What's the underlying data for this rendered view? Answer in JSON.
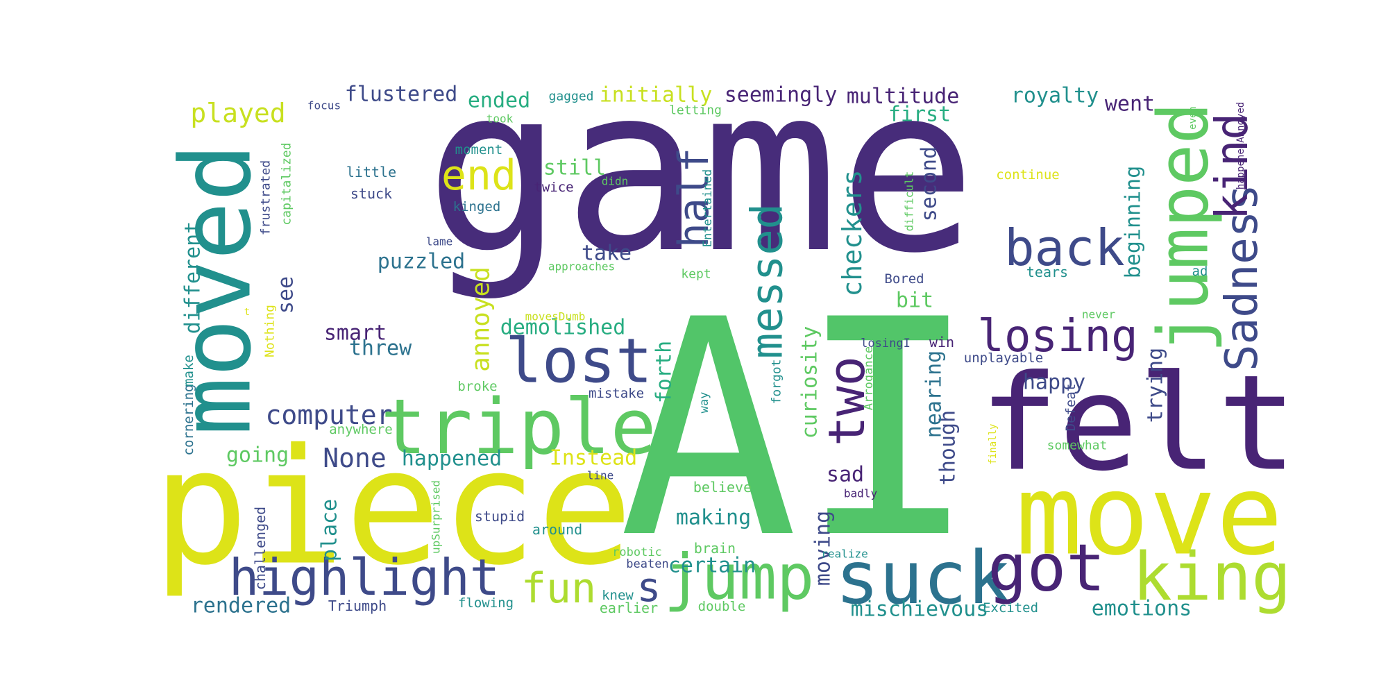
{
  "palette": {
    "purple_dark": "#472c7a",
    "purple": "#482475",
    "navy": "#3e4a89",
    "blue": "#31688e",
    "teal_blue": "#2c728e",
    "teal": "#21908d",
    "sea_green": "#27ad81",
    "green": "#5ec962",
    "green_bright": "#52c569",
    "lime": "#addc30",
    "yellow_green": "#c8e020",
    "yellow": "#dde318",
    "background": "#ffffff"
  },
  "words": [
    {
      "text": "game"
    },
    {
      "text": "AI"
    },
    {
      "text": "piece"
    },
    {
      "text": "felt"
    },
    {
      "text": "move"
    },
    {
      "text": "moved"
    },
    {
      "text": "triple"
    },
    {
      "text": "suck"
    },
    {
      "text": "jumped"
    },
    {
      "text": "lost"
    },
    {
      "text": "got"
    },
    {
      "text": "king"
    },
    {
      "text": "jump"
    },
    {
      "text": "highlight"
    },
    {
      "text": "back"
    },
    {
      "text": "losing"
    },
    {
      "text": "Sadness"
    },
    {
      "text": "kind"
    },
    {
      "text": "messed"
    },
    {
      "text": "two"
    },
    {
      "text": "fun"
    },
    {
      "text": "end"
    },
    {
      "text": "half"
    },
    {
      "text": "s"
    },
    {
      "text": "computer"
    },
    {
      "text": "checkers"
    },
    {
      "text": "played"
    },
    {
      "text": "annoyed"
    },
    {
      "text": "None"
    },
    {
      "text": "seemingly"
    },
    {
      "text": "flustered"
    },
    {
      "text": "initially"
    },
    {
      "text": "multitude"
    },
    {
      "text": "royalty"
    },
    {
      "text": "ended"
    },
    {
      "text": "first"
    },
    {
      "text": "went"
    },
    {
      "text": "still"
    },
    {
      "text": "take"
    },
    {
      "text": "puzzled"
    },
    {
      "text": "smart"
    },
    {
      "text": "threw"
    },
    {
      "text": "demolished"
    },
    {
      "text": "different"
    },
    {
      "text": "see"
    },
    {
      "text": "curiosity"
    },
    {
      "text": "second"
    },
    {
      "text": "beginning"
    },
    {
      "text": "trying"
    },
    {
      "text": "though"
    },
    {
      "text": "nearing"
    },
    {
      "text": "happened"
    },
    {
      "text": "Instead"
    },
    {
      "text": "going"
    },
    {
      "text": "place"
    },
    {
      "text": "sad"
    },
    {
      "text": "making"
    },
    {
      "text": "moving"
    },
    {
      "text": "certain"
    },
    {
      "text": "rendered"
    },
    {
      "text": "mischievous"
    },
    {
      "text": "emotions"
    },
    {
      "text": "happy"
    },
    {
      "text": "forth"
    },
    {
      "text": "bit"
    },
    {
      "text": "focus"
    },
    {
      "text": "gagged"
    },
    {
      "text": "letting"
    },
    {
      "text": "took"
    },
    {
      "text": "moment"
    },
    {
      "text": "little"
    },
    {
      "text": "stuck"
    },
    {
      "text": "twice"
    },
    {
      "text": "didn"
    },
    {
      "text": "kinged"
    },
    {
      "text": "continue"
    },
    {
      "text": "Entertained"
    },
    {
      "text": "frustrated"
    },
    {
      "text": "capitalized"
    },
    {
      "text": "difficult"
    },
    {
      "text": "lame"
    },
    {
      "text": "approaches"
    },
    {
      "text": "kept"
    },
    {
      "text": "Bored"
    },
    {
      "text": "tears"
    },
    {
      "text": "ad"
    },
    {
      "text": "even"
    },
    {
      "text": "happenedAnnoyed"
    },
    {
      "text": "movesDumb"
    },
    {
      "text": "losingI"
    },
    {
      "text": "win"
    },
    {
      "text": "unplayable"
    },
    {
      "text": "never"
    },
    {
      "text": "Arrogance"
    },
    {
      "text": "forgot"
    },
    {
      "text": "way"
    },
    {
      "text": "Defeat"
    },
    {
      "text": "finally"
    },
    {
      "text": "somewhat"
    },
    {
      "text": "broke"
    },
    {
      "text": "mistake"
    },
    {
      "text": "anywhere"
    },
    {
      "text": "line"
    },
    {
      "text": "badly"
    },
    {
      "text": "believe"
    },
    {
      "text": "upSurprised"
    },
    {
      "text": "stupid"
    },
    {
      "text": "around"
    },
    {
      "text": "robotic"
    },
    {
      "text": "brain"
    },
    {
      "text": "realize"
    },
    {
      "text": "beaten"
    },
    {
      "text": "knew"
    },
    {
      "text": "Triumph"
    },
    {
      "text": "flowing"
    },
    {
      "text": "earlier"
    },
    {
      "text": "double"
    },
    {
      "text": "Excited"
    },
    {
      "text": "challenged"
    },
    {
      "text": "cornering"
    },
    {
      "text": "make"
    },
    {
      "text": "Nothing"
    },
    {
      "text": "t"
    }
  ]
}
